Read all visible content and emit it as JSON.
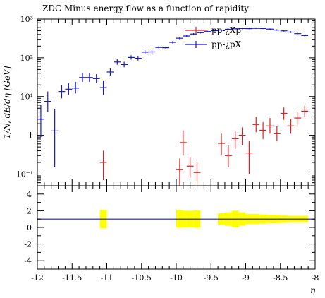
{
  "chart_data": {
    "type": "scatter",
    "title": "ZDC Minus energy flow as a function of rapidity",
    "xlabel": "η",
    "ylabel": "1/N, dE/dη [GeV]",
    "xlim": [
      -12,
      -8
    ],
    "ylim": [
      0.05,
      1000
    ],
    "yscale": "log",
    "ratio_ylim": [
      -5,
      5
    ],
    "x_tick_labels": [
      "-12",
      "-11.5",
      "-11",
      "-10.5",
      "-10",
      "-9.5",
      "-9",
      "-8.5",
      "-8"
    ],
    "y_tick_labels": [
      "10⁻¹",
      "1",
      "10¹",
      "10²",
      "10³"
    ],
    "ratio_tick_labels": [
      "4",
      "2",
      "0",
      "-2",
      "-4"
    ],
    "legend_placement": "top-right",
    "colors": {
      "series1": "#e02020",
      "series2": "#1515e0",
      "ratio_band": "#ffff00",
      "ratio_line": "#1515e0"
    },
    "series": [
      {
        "name": "pp-¿Xp",
        "color": "#e02020",
        "x": [
          -11.05,
          -9.95,
          -9.9,
          -9.8,
          -9.7,
          -9.35,
          -9.25,
          -9.15,
          -9.05,
          -8.95,
          -8.85,
          -8.75,
          -8.65,
          -8.55,
          -8.45,
          -8.35,
          -8.25,
          -8.15
        ],
        "y": [
          0.2,
          0.13,
          0.65,
          0.16,
          0.11,
          0.62,
          0.3,
          0.82,
          1.0,
          0.35,
          1.9,
          1.35,
          1.75,
          1.1,
          3.7,
          1.75,
          2.8,
          4.2
        ],
        "ylo": [
          0.07,
          0.05,
          0.3,
          0.08,
          0.06,
          0.3,
          0.15,
          0.45,
          0.55,
          0.1,
          1.2,
          0.8,
          1.1,
          0.7,
          2.5,
          1.1,
          1.8,
          3.0
        ],
        "yhi": [
          0.4,
          0.25,
          1.35,
          0.28,
          0.2,
          1.1,
          0.55,
          1.25,
          1.6,
          0.7,
          3.0,
          2.2,
          2.8,
          1.7,
          5.2,
          2.6,
          4.0,
          5.8
        ],
        "xerr": 0.05
      },
      {
        "name": "pp-¿pX",
        "color": "#1515e0",
        "x": [
          -11.95,
          -11.85,
          -11.75,
          -11.65,
          -11.55,
          -11.45,
          -11.35,
          -11.25,
          -11.15,
          -11.05,
          -10.95,
          -10.85,
          -10.75,
          -10.65,
          -10.55,
          -10.45,
          -10.35,
          -10.25,
          -10.15,
          -10.05,
          -9.95,
          -9.85,
          -9.75,
          -9.65,
          -9.55,
          -9.45,
          -9.35,
          -9.25,
          -9.15,
          -9.05,
          -8.95,
          -8.85,
          -8.75,
          -8.65,
          -8.55,
          -8.45,
          -8.35,
          -8.25,
          -8.15
        ],
        "y": [
          2.6,
          7.5,
          1.3,
          13.5,
          15.5,
          16.5,
          31,
          31,
          29,
          17,
          43,
          78,
          67,
          102,
          97,
          140,
          142,
          185,
          182,
          250,
          320,
          365,
          410,
          445,
          475,
          500,
          520,
          545,
          560,
          570,
          565,
          575,
          570,
          550,
          520,
          495,
          460,
          420,
          375
        ],
        "ylo": [
          0.9,
          4.0,
          0.15,
          9.0,
          11.0,
          12.0,
          24,
          24,
          22,
          11,
          35,
          66,
          57,
          90,
          85,
          125,
          128,
          170,
          168,
          232,
          300,
          345,
          390,
          425,
          455,
          480,
          500,
          525,
          540,
          550,
          545,
          555,
          550,
          530,
          500,
          475,
          440,
          400,
          355
        ],
        "yhi": [
          6.0,
          13.5,
          4.8,
          20.0,
          22.0,
          24.0,
          40,
          40,
          38,
          26,
          53,
          92,
          79,
          116,
          110,
          157,
          158,
          202,
          198,
          270,
          342,
          387,
          432,
          467,
          497,
          522,
          542,
          567,
          582,
          592,
          587,
          597,
          592,
          572,
          542,
          517,
          482,
          442,
          397
        ],
        "xerr": 0.05
      }
    ],
    "ratio": {
      "reference": 1,
      "band_x": [
        -11.05,
        -9.95,
        -9.9,
        -9.8,
        -9.7,
        -9.35,
        -9.25,
        -9.15,
        -9.05,
        -8.95,
        -8.85,
        -8.75,
        -8.65,
        -8.55,
        -8.45,
        -8.35,
        -8.25,
        -8.15
      ],
      "band_lo": [
        -0.1,
        -0.05,
        0.0,
        0.0,
        -0.05,
        0.3,
        0.2,
        0.0,
        0.2,
        0.4,
        0.4,
        0.45,
        0.5,
        0.5,
        0.55,
        0.6,
        0.6,
        0.6
      ],
      "band_hi": [
        2.1,
        2.1,
        2.0,
        2.0,
        2.05,
        1.7,
        1.8,
        2.0,
        1.8,
        1.6,
        1.6,
        1.55,
        1.5,
        1.5,
        1.45,
        1.4,
        1.4,
        1.4
      ]
    }
  }
}
